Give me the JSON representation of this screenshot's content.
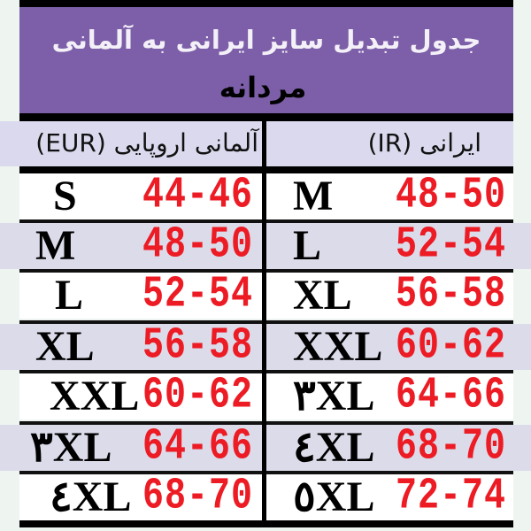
{
  "header": {
    "title": "جدول تبدیل سایز ایرانی به آلمانی",
    "subtitle": "مردانه"
  },
  "columns": {
    "eur": "آلمانی اروپایی (EUR)",
    "ir": "ایرانی (IR)"
  },
  "rows": [
    {
      "eur_size": "S",
      "eur_range": "44-46",
      "ir_size": "M",
      "ir_range": "48-50"
    },
    {
      "eur_size": "M",
      "eur_range": "48-50",
      "ir_size": "L",
      "ir_range": "52-54"
    },
    {
      "eur_size": "L",
      "eur_range": "52-54",
      "ir_size": "XL",
      "ir_range": "56-58"
    },
    {
      "eur_size": "XL",
      "eur_range": "56-58",
      "ir_size": "XXL",
      "ir_range": "60-62"
    },
    {
      "eur_size": "XXL",
      "eur_range": "60-62",
      "ir_size": "٣XL",
      "ir_range": "64-66"
    },
    {
      "eur_size": "٣XL",
      "eur_range": "64-66",
      "ir_size": "٤XL",
      "ir_range": "68-70"
    },
    {
      "eur_size": "٤XL",
      "eur_range": "68-70",
      "ir_size": "٥XL",
      "ir_range": "72-74"
    }
  ],
  "colors": {
    "banner": "#7c5fa8",
    "range_text": "#ec1b24",
    "stripe": "#dcdbea"
  }
}
